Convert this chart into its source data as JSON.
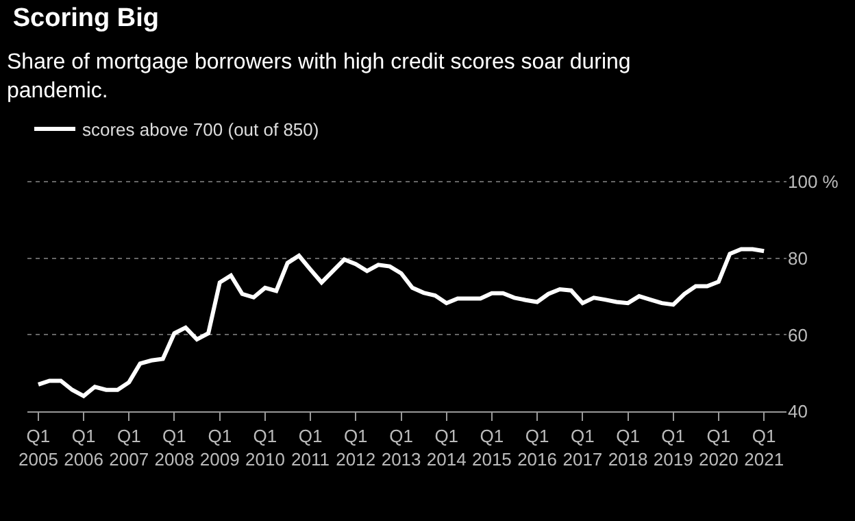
{
  "chart_data": {
    "type": "line",
    "title": "Scoring Big",
    "subtitle": "Share of mortgage borrowers with high credit scores soar during pandemic.",
    "x": [
      "2005-01",
      "2005-04",
      "2005-07",
      "2005-10",
      "2006-01",
      "2006-04",
      "2006-07",
      "2006-10",
      "2007-01",
      "2007-04",
      "2007-07",
      "2007-10",
      "2008-01",
      "2008-04",
      "2008-07",
      "2008-10",
      "2009-01",
      "2009-04",
      "2009-07",
      "2009-10",
      "2010-01",
      "2010-04",
      "2010-07",
      "2010-10",
      "2011-01",
      "2011-04",
      "2011-07",
      "2011-10",
      "2012-01",
      "2012-04",
      "2012-07",
      "2012-10",
      "2013-01",
      "2013-04",
      "2013-07",
      "2013-10",
      "2014-01",
      "2014-04",
      "2014-07",
      "2014-10",
      "2015-01",
      "2015-04",
      "2015-07",
      "2015-10",
      "2016-01",
      "2016-04",
      "2016-07",
      "2016-10",
      "2017-01",
      "2017-04",
      "2017-07",
      "2017-10",
      "2018-01",
      "2018-04",
      "2018-07",
      "2018-10",
      "2019-01",
      "2019-04",
      "2019-07",
      "2019-10",
      "2020-01",
      "2020-04",
      "2020-07",
      "2020-10",
      "2021-01"
    ],
    "series": [
      {
        "name": "scores above 700 (out of 850)",
        "color": "#ffffff",
        "values": [
          47.0,
          48.0,
          48.0,
          45.6,
          44.0,
          46.4,
          45.6,
          45.6,
          47.6,
          52.5,
          53.3,
          53.7,
          60.4,
          61.9,
          58.8,
          60.4,
          73.7,
          75.5,
          70.7,
          69.8,
          72.3,
          71.5,
          78.8,
          80.7,
          77.1,
          73.7,
          76.7,
          79.7,
          78.5,
          76.7,
          78.3,
          77.9,
          76.1,
          72.3,
          71.0,
          70.3,
          68.3,
          69.5,
          69.5,
          69.5,
          70.9,
          70.9,
          69.7,
          69.1,
          68.6,
          70.7,
          71.9,
          71.6,
          68.3,
          69.7,
          69.2,
          68.6,
          68.3,
          70.1,
          69.2,
          68.3,
          67.9,
          70.7,
          72.7,
          72.7,
          73.9,
          81.2,
          82.4,
          82.4,
          81.9
        ]
      }
    ],
    "xlim": [
      "2004-10-05",
      "2021-07-01"
    ],
    "xticks": [
      {
        "value": "2005-01",
        "label": "Q1\n2005"
      },
      {
        "value": "2006-01",
        "label": "Q1\n2006"
      },
      {
        "value": "2007-01",
        "label": "Q1\n2007"
      },
      {
        "value": "2008-01",
        "label": "Q1\n2008"
      },
      {
        "value": "2009-01",
        "label": "Q1\n2009"
      },
      {
        "value": "2010-01",
        "label": "Q1\n2010"
      },
      {
        "value": "2011-01",
        "label": "Q1\n2011"
      },
      {
        "value": "2012-01",
        "label": "Q1\n2012"
      },
      {
        "value": "2013-01",
        "label": "Q1\n2013"
      },
      {
        "value": "2014-01",
        "label": "Q1\n2014"
      },
      {
        "value": "2015-01",
        "label": "Q1\n2015"
      },
      {
        "value": "2016-01",
        "label": "Q1\n2016"
      },
      {
        "value": "2017-01",
        "label": "Q1\n2017"
      },
      {
        "value": "2018-01",
        "label": "Q1\n2018"
      },
      {
        "value": "2019-01",
        "label": "Q1\n2019"
      },
      {
        "value": "2020-01",
        "label": "Q1\n2020"
      },
      {
        "value": "2021-01",
        "label": "Q1\n2021"
      }
    ],
    "ylim": [
      40,
      100
    ],
    "yticks": [
      40,
      60,
      80,
      {
        "value": 100,
        "label": "100 %"
      }
    ],
    "grid": "y",
    "legend": "top left",
    "marker": "none",
    "line_style": "solid"
  }
}
